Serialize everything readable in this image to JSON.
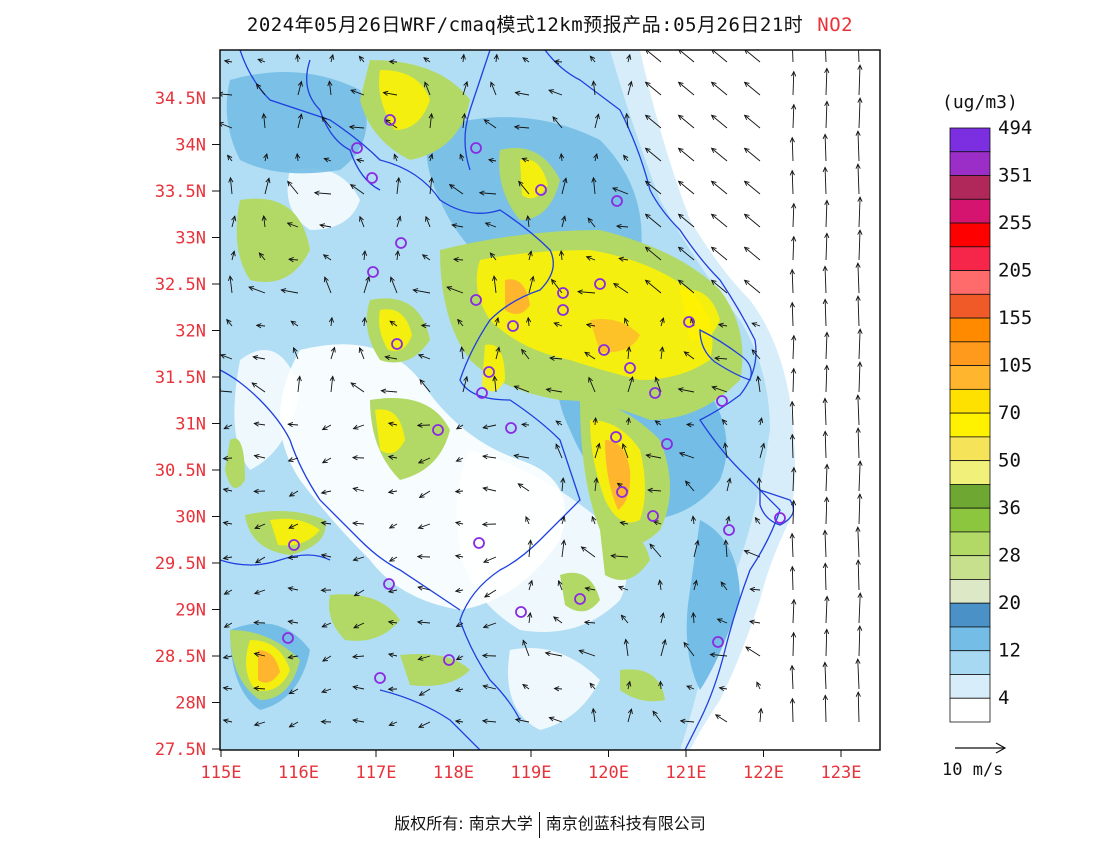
{
  "title": {
    "main": "2024年05月26日WRF/cmaq模式12km预报产品:05月26日21时",
    "species": "NO2"
  },
  "colorbar": {
    "unit": "(ug/m3)",
    "colors": [
      "#ffffff",
      "#d7eefa",
      "#a8d9f2",
      "#74bde6",
      "#4a91c8",
      "#dce8c6",
      "#c6e08e",
      "#b2d966",
      "#8cc63e",
      "#6ea832",
      "#f0f07a",
      "#f5e35a",
      "#fff200",
      "#ffe100",
      "#ffb62e",
      "#ff9a1c",
      "#ff8a00",
      "#f05a28",
      "#ff6a6a",
      "#f5264a",
      "#ff0000",
      "#d4146e",
      "#b0285a",
      "#9c2ec8",
      "#7b2fe0"
    ],
    "labels": [
      "4",
      "12",
      "20",
      "28",
      "36",
      "50",
      "70",
      "105",
      "155",
      "205",
      "255",
      "351",
      "494"
    ]
  },
  "axes": {
    "lat_labels": [
      "34.5N",
      "34N",
      "33.5N",
      "33N",
      "32.5N",
      "32N",
      "31.5N",
      "31N",
      "30.5N",
      "30N",
      "29.5N",
      "29N",
      "28.5N",
      "28N",
      "27.5N"
    ],
    "lon_labels": [
      "115E",
      "116E",
      "117E",
      "118E",
      "119E",
      "120E",
      "121E",
      "122E",
      "123E"
    ],
    "label_color": "#e8323a"
  },
  "wind": {
    "label": "10 m/s"
  },
  "footer": {
    "left": "版权所有: 南京大学",
    "right": "南京创蓝科技有限公司"
  }
}
